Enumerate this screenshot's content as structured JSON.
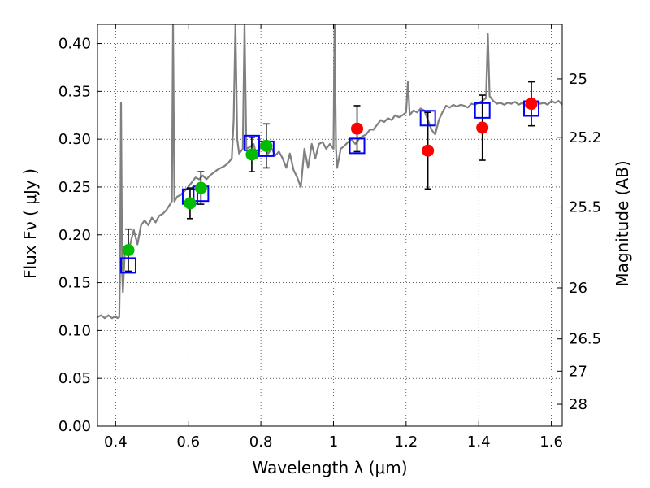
{
  "chart_data": {
    "type": "scatter",
    "xlabel": "Wavelength  λ (μm)",
    "ylabel": "Flux  Fν  ( μJy )",
    "y2label": "Magnitude (AB)",
    "xlim": [
      0.35,
      1.63
    ],
    "ylim": [
      0.0,
      0.42
    ],
    "xticks": [
      {
        "v": 0.4,
        "label": "0.4"
      },
      {
        "v": 0.6,
        "label": "0.6"
      },
      {
        "v": 0.8,
        "label": "0.8"
      },
      {
        "v": 1.0,
        "label": "1"
      },
      {
        "v": 1.2,
        "label": "1.2"
      },
      {
        "v": 1.4,
        "label": "1.4"
      },
      {
        "v": 1.6,
        "label": "1.6"
      }
    ],
    "yticks": [
      {
        "v": 0.0,
        "label": "0.00"
      },
      {
        "v": 0.05,
        "label": "0.05"
      },
      {
        "v": 0.1,
        "label": "0.10"
      },
      {
        "v": 0.15,
        "label": "0.15"
      },
      {
        "v": 0.2,
        "label": "0.20"
      },
      {
        "v": 0.25,
        "label": "0.25"
      },
      {
        "v": 0.3,
        "label": "0.30"
      },
      {
        "v": 0.35,
        "label": "0.35"
      },
      {
        "v": 0.4,
        "label": "0.40"
      }
    ],
    "y2ticks": [
      {
        "mag": 25,
        "label": "25"
      },
      {
        "mag": 25.2,
        "label": "25.2"
      },
      {
        "mag": 25.5,
        "label": "25.5"
      },
      {
        "mag": 26,
        "label": "26"
      },
      {
        "mag": 26.5,
        "label": "26.5"
      },
      {
        "mag": 27,
        "label": "27"
      },
      {
        "mag": 28,
        "label": "28"
      }
    ],
    "grid": true,
    "series": [
      {
        "kind": "model_spectrum",
        "color": "#808080",
        "points": [
          [
            0.35,
            0.114
          ],
          [
            0.36,
            0.116
          ],
          [
            0.37,
            0.113
          ],
          [
            0.38,
            0.116
          ],
          [
            0.39,
            0.113
          ],
          [
            0.4,
            0.115
          ],
          [
            0.405,
            0.113
          ],
          [
            0.41,
            0.114
          ],
          [
            0.412,
            0.16
          ],
          [
            0.415,
            0.338
          ],
          [
            0.418,
            0.16
          ],
          [
            0.42,
            0.14
          ],
          [
            0.425,
            0.18
          ],
          [
            0.43,
            0.18
          ],
          [
            0.44,
            0.19
          ],
          [
            0.45,
            0.205
          ],
          [
            0.46,
            0.19
          ],
          [
            0.47,
            0.21
          ],
          [
            0.48,
            0.215
          ],
          [
            0.49,
            0.21
          ],
          [
            0.5,
            0.218
          ],
          [
            0.51,
            0.213
          ],
          [
            0.52,
            0.22
          ],
          [
            0.53,
            0.222
          ],
          [
            0.54,
            0.226
          ],
          [
            0.55,
            0.232
          ],
          [
            0.555,
            0.235
          ],
          [
            0.558,
            0.42
          ],
          [
            0.562,
            0.235
          ],
          [
            0.57,
            0.24
          ],
          [
            0.58,
            0.242
          ],
          [
            0.59,
            0.246
          ],
          [
            0.6,
            0.25
          ],
          [
            0.61,
            0.255
          ],
          [
            0.62,
            0.26
          ],
          [
            0.63,
            0.258
          ],
          [
            0.64,
            0.262
          ],
          [
            0.65,
            0.258
          ],
          [
            0.66,
            0.262
          ],
          [
            0.67,
            0.265
          ],
          [
            0.68,
            0.268
          ],
          [
            0.69,
            0.27
          ],
          [
            0.7,
            0.272
          ],
          [
            0.71,
            0.275
          ],
          [
            0.72,
            0.28
          ],
          [
            0.725,
            0.32
          ],
          [
            0.73,
            0.42
          ],
          [
            0.735,
            0.3
          ],
          [
            0.74,
            0.285
          ],
          [
            0.75,
            0.29
          ],
          [
            0.755,
            0.42
          ],
          [
            0.76,
            0.29
          ],
          [
            0.77,
            0.292
          ],
          [
            0.78,
            0.295
          ],
          [
            0.79,
            0.28
          ],
          [
            0.8,
            0.295
          ],
          [
            0.81,
            0.29
          ],
          [
            0.82,
            0.285
          ],
          [
            0.83,
            0.29
          ],
          [
            0.84,
            0.283
          ],
          [
            0.85,
            0.287
          ],
          [
            0.86,
            0.28
          ],
          [
            0.87,
            0.27
          ],
          [
            0.88,
            0.285
          ],
          [
            0.89,
            0.268
          ],
          [
            0.9,
            0.26
          ],
          [
            0.91,
            0.25
          ],
          [
            0.92,
            0.29
          ],
          [
            0.93,
            0.27
          ],
          [
            0.94,
            0.295
          ],
          [
            0.95,
            0.28
          ],
          [
            0.96,
            0.295
          ],
          [
            0.97,
            0.297
          ],
          [
            0.98,
            0.29
          ],
          [
            0.99,
            0.295
          ],
          [
            1.0,
            0.29
          ],
          [
            1.003,
            0.42
          ],
          [
            1.007,
            0.29
          ],
          [
            1.01,
            0.27
          ],
          [
            1.02,
            0.29
          ],
          [
            1.03,
            0.293
          ],
          [
            1.04,
            0.297
          ],
          [
            1.05,
            0.3
          ],
          [
            1.06,
            0.295
          ],
          [
            1.07,
            0.3
          ],
          [
            1.08,
            0.303
          ],
          [
            1.09,
            0.305
          ],
          [
            1.1,
            0.31
          ],
          [
            1.11,
            0.31
          ],
          [
            1.12,
            0.315
          ],
          [
            1.13,
            0.32
          ],
          [
            1.14,
            0.318
          ],
          [
            1.15,
            0.322
          ],
          [
            1.16,
            0.32
          ],
          [
            1.17,
            0.325
          ],
          [
            1.18,
            0.323
          ],
          [
            1.19,
            0.325
          ],
          [
            1.2,
            0.328
          ],
          [
            1.205,
            0.36
          ],
          [
            1.21,
            0.325
          ],
          [
            1.22,
            0.33
          ],
          [
            1.23,
            0.328
          ],
          [
            1.24,
            0.332
          ],
          [
            1.25,
            0.33
          ],
          [
            1.26,
            0.32
          ],
          [
            1.27,
            0.31
          ],
          [
            1.28,
            0.305
          ],
          [
            1.29,
            0.32
          ],
          [
            1.3,
            0.328
          ],
          [
            1.31,
            0.335
          ],
          [
            1.32,
            0.333
          ],
          [
            1.33,
            0.336
          ],
          [
            1.34,
            0.334
          ],
          [
            1.35,
            0.336
          ],
          [
            1.36,
            0.335
          ],
          [
            1.37,
            0.333
          ],
          [
            1.38,
            0.337
          ],
          [
            1.39,
            0.336
          ],
          [
            1.4,
            0.338
          ],
          [
            1.41,
            0.34
          ],
          [
            1.42,
            0.343
          ],
          [
            1.425,
            0.41
          ],
          [
            1.43,
            0.345
          ],
          [
            1.44,
            0.34
          ],
          [
            1.45,
            0.337
          ],
          [
            1.46,
            0.338
          ],
          [
            1.47,
            0.336
          ],
          [
            1.48,
            0.338
          ],
          [
            1.49,
            0.337
          ],
          [
            1.5,
            0.339
          ],
          [
            1.51,
            0.336
          ],
          [
            1.52,
            0.338
          ],
          [
            1.53,
            0.335
          ],
          [
            1.54,
            0.337
          ],
          [
            1.55,
            0.336
          ],
          [
            1.56,
            0.339
          ],
          [
            1.57,
            0.337
          ],
          [
            1.58,
            0.338
          ],
          [
            1.59,
            0.336
          ],
          [
            1.6,
            0.34
          ],
          [
            1.61,
            0.338
          ],
          [
            1.62,
            0.34
          ],
          [
            1.63,
            0.336
          ]
        ]
      },
      {
        "kind": "model_photometry",
        "marker": "open-square",
        "color": "#0000ff",
        "points": [
          [
            0.435,
            0.168
          ],
          [
            0.605,
            0.24
          ],
          [
            0.635,
            0.243
          ],
          [
            0.775,
            0.296
          ],
          [
            0.815,
            0.29
          ],
          [
            1.065,
            0.293
          ],
          [
            1.26,
            0.322
          ],
          [
            1.41,
            0.33
          ],
          [
            1.545,
            0.332
          ]
        ]
      },
      {
        "kind": "observed_optical",
        "marker": "filled-circle",
        "color": "#00bb00",
        "points": [
          {
            "x": 0.435,
            "y": 0.184,
            "err": 0.022
          },
          {
            "x": 0.605,
            "y": 0.233,
            "err": 0.016
          },
          {
            "x": 0.635,
            "y": 0.249,
            "err": 0.017
          },
          {
            "x": 0.775,
            "y": 0.284,
            "err": 0.018
          },
          {
            "x": 0.815,
            "y": 0.293,
            "err": 0.023
          }
        ]
      },
      {
        "kind": "observed_infrared",
        "marker": "filled-circle",
        "color": "#ff0000",
        "points": [
          {
            "x": 1.065,
            "y": 0.311,
            "err": 0.024
          },
          {
            "x": 1.26,
            "y": 0.288,
            "err": 0.04
          },
          {
            "x": 1.41,
            "y": 0.312,
            "err": 0.034
          },
          {
            "x": 1.545,
            "y": 0.337,
            "err": 0.023
          }
        ]
      }
    ]
  }
}
